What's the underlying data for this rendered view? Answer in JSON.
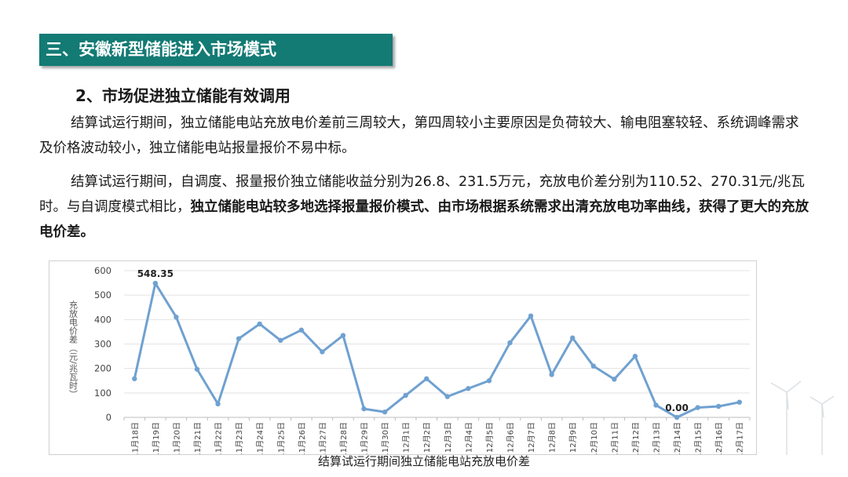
{
  "header": {
    "title": "三、安徽新型储能进入市场模式"
  },
  "subheading": "2、市场促进独立储能有效调用",
  "paragraph1": "结算试运行期间，独立储能电站充放电价差前三周较大，第四周较小主要原因是负荷较大、输电阻塞较轻、系统调峰需求及价格波动较小，独立储能电站报量报价不易中标。",
  "paragraph2": {
    "normal": "结算试运行期间，自调度、报量报价独立储能收益分别为26.8、231.5万元，充放电价差分别为110.52、270.31元/兆瓦时。与自调度模式相比，",
    "bold": "独立储能电站较多地选择报量报价模式、由市场根据系统需求出清充放电功率曲线，获得了更大的充放电价差。"
  },
  "caption": "结算试运行期间独立储能电站充放电价差",
  "chart_data": {
    "type": "line",
    "ylabel": "充放电价差（元/兆瓦时）",
    "xlabel": "",
    "ylim": [
      0,
      600
    ],
    "yticks": [
      0,
      100,
      200,
      300,
      400,
      500,
      600
    ],
    "grid": true,
    "line_color": "#6fa1d0",
    "categories": [
      "11月18日",
      "11月19日",
      "11月20日",
      "11月21日",
      "11月22日",
      "11月23日",
      "11月24日",
      "11月25日",
      "11月26日",
      "11月27日",
      "11月28日",
      "11月29日",
      "11月30日",
      "12月1日",
      "12月2日",
      "12月3日",
      "12月4日",
      "12月5日",
      "12月6日",
      "12月7日",
      "12月8日",
      "12月9日",
      "12月10日",
      "12月11日",
      "12月12日",
      "12月13日",
      "12月14日",
      "12月15日",
      "12月16日",
      "12月17日"
    ],
    "values": [
      158,
      548.35,
      410,
      197,
      55,
      322,
      382,
      315,
      357,
      268,
      335,
      35,
      22,
      90,
      158,
      85,
      118,
      150,
      305,
      415,
      175,
      325,
      210,
      156,
      250,
      50,
      0.0,
      40,
      45,
      62
    ],
    "annotations": [
      {
        "index": 1,
        "text": "548.35"
      },
      {
        "index": 26,
        "text": "0.00"
      }
    ]
  }
}
